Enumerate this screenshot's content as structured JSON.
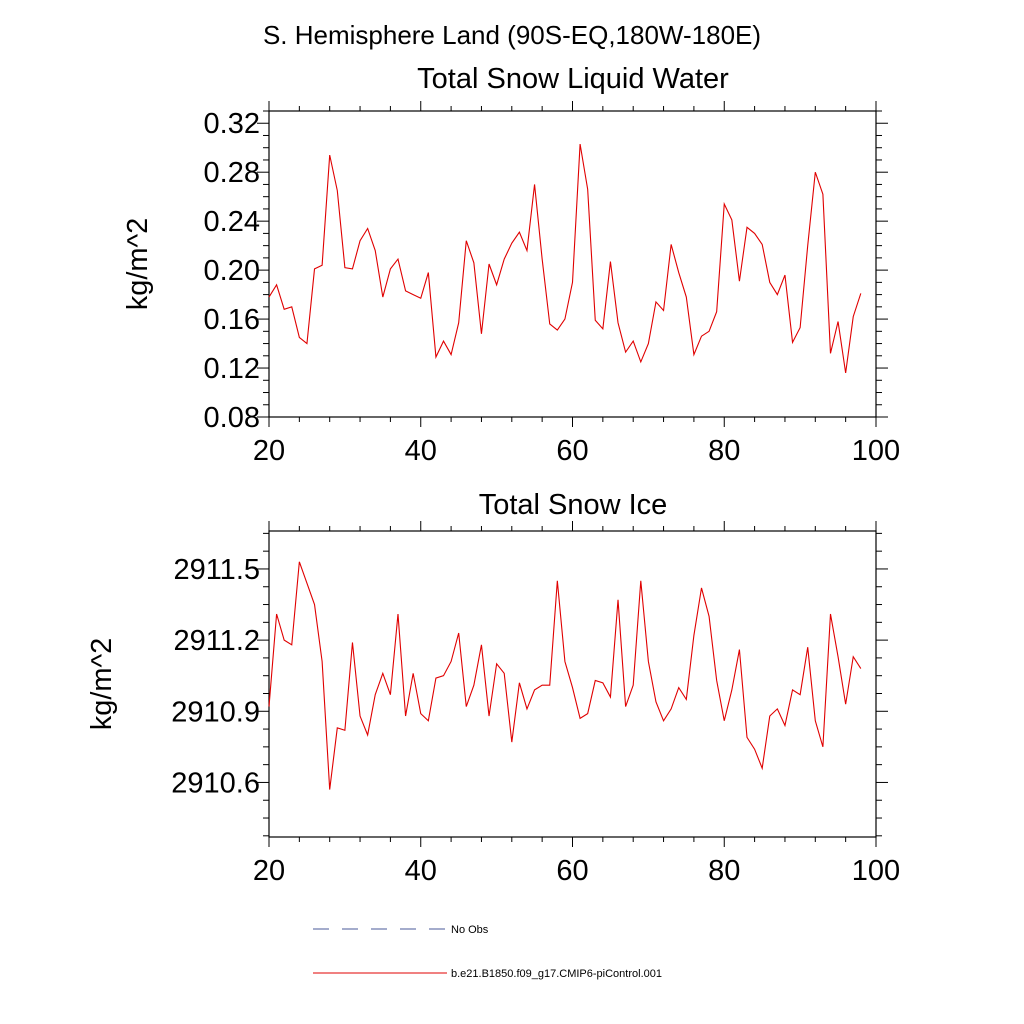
{
  "figure_title": "S. Hemisphere Land (90S-EQ,180W-180E)",
  "colors": {
    "model": "#e00000",
    "obs": "#4a5a9a"
  },
  "legend": [
    {
      "label": "No Obs",
      "style": "dashed",
      "color": "#4a5a9a"
    },
    {
      "label": "b.e21.B1850.f09_g17.CMIP6-piControl.001",
      "style": "solid",
      "color": "#e00000"
    }
  ],
  "chart_data": [
    {
      "type": "line",
      "title": "Total Snow Liquid Water",
      "xlabel": "",
      "ylabel": "kg/m^2",
      "xlim": [
        20,
        100
      ],
      "ylim": [
        0.08,
        0.33
      ],
      "xticks": [
        20,
        40,
        60,
        80,
        100
      ],
      "xtick_labels": [
        "20",
        "40",
        "60",
        "80",
        "100"
      ],
      "yticks": [
        0.08,
        0.12,
        0.16,
        0.2,
        0.24,
        0.28,
        0.32
      ],
      "ytick_labels": [
        "0.08",
        "0.12",
        "0.16",
        "0.20",
        "0.24",
        "0.28",
        "0.32"
      ],
      "x_start": 20,
      "series": [
        {
          "name": "b.e21.B1850.f09_g17.CMIP6-piControl.001",
          "values": [
            0.178,
            0.188,
            0.168,
            0.17,
            0.145,
            0.14,
            0.201,
            0.204,
            0.294,
            0.265,
            0.202,
            0.201,
            0.224,
            0.234,
            0.216,
            0.178,
            0.201,
            0.209,
            0.183,
            0.18,
            0.177,
            0.198,
            0.129,
            0.142,
            0.131,
            0.157,
            0.224,
            0.206,
            0.148,
            0.205,
            0.188,
            0.209,
            0.222,
            0.231,
            0.216,
            0.27,
            0.209,
            0.156,
            0.151,
            0.16,
            0.19,
            0.303,
            0.266,
            0.159,
            0.152,
            0.207,
            0.157,
            0.133,
            0.142,
            0.125,
            0.14,
            0.174,
            0.167,
            0.221,
            0.198,
            0.178,
            0.131,
            0.146,
            0.15,
            0.166,
            0.254,
            0.241,
            0.191,
            0.235,
            0.23,
            0.221,
            0.19,
            0.18,
            0.196,
            0.141,
            0.153,
            0.22,
            0.28,
            0.262,
            0.132,
            0.158,
            0.116,
            0.162,
            0.181
          ]
        }
      ]
    },
    {
      "type": "line",
      "title": "Total Snow Ice",
      "xlabel": "",
      "ylabel": "kg/m^2",
      "xlim": [
        20,
        100
      ],
      "ylim": [
        2910.37,
        2911.66
      ],
      "xticks": [
        20,
        40,
        60,
        80,
        100
      ],
      "xtick_labels": [
        "20",
        "40",
        "60",
        "80",
        "100"
      ],
      "yticks": [
        2910.6,
        2910.9,
        2911.2,
        2911.5
      ],
      "ytick_labels": [
        "2910.6",
        "2910.9",
        "2911.2",
        "2911.5"
      ],
      "x_start": 20,
      "series": [
        {
          "name": "b.e21.B1850.f09_g17.CMIP6-piControl.001",
          "values": [
            2910.92,
            2911.31,
            2911.2,
            2911.18,
            2911.53,
            2911.44,
            2911.35,
            2911.11,
            2910.57,
            2910.83,
            2910.82,
            2911.19,
            2910.88,
            2910.8,
            2910.97,
            2911.06,
            2910.97,
            2911.31,
            2910.88,
            2911.06,
            2910.89,
            2910.86,
            2911.04,
            2911.05,
            2911.11,
            2911.23,
            2910.92,
            2911.01,
            2911.18,
            2910.88,
            2911.1,
            2911.06,
            2910.77,
            2911.02,
            2910.91,
            2910.99,
            2911.01,
            2911.01,
            2911.45,
            2911.11,
            2911.0,
            2910.87,
            2910.89,
            2911.03,
            2911.02,
            2910.96,
            2911.37,
            2910.92,
            2911.01,
            2911.45,
            2911.11,
            2910.94,
            2910.86,
            2910.91,
            2911.0,
            2910.95,
            2911.22,
            2911.42,
            2911.3,
            2911.03,
            2910.86,
            2910.99,
            2911.16,
            2910.79,
            2910.74,
            2910.66,
            2910.88,
            2910.91,
            2910.84,
            2910.99,
            2910.97,
            2911.17,
            2910.86,
            2910.75,
            2911.31,
            2911.13,
            2910.93,
            2911.13,
            2911.08
          ]
        }
      ]
    }
  ]
}
